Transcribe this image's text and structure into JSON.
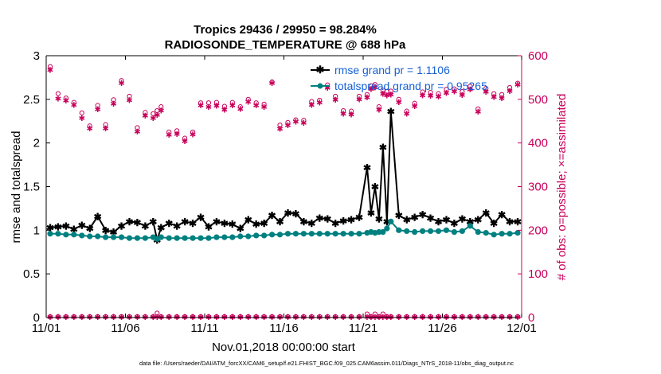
{
  "chart_data": {
    "type": "line",
    "title_line1": "Tropics 29436 / 29950 = 98.284%",
    "title_line2": "RADIOSONDE_TEMPERATURE @ 688 hPa",
    "xlabel": "Nov.01,2018 00:00:00 start",
    "ylabel_left": "rmse and totalspread",
    "ylabel_right": "# of obs: o=possible; ×=assimilated",
    "footer": "data file: /Users/raeder/DAI/ATM_forcXX/CAM6_setup/f.e21.FHIST_BGC.f09_025.CAM6assim.011/Diags_NTrS_2018-11/obs_diag_output.nc",
    "xlim": [
      0,
      30
    ],
    "ylim_left": [
      0,
      3
    ],
    "ylim_right": [
      0,
      600
    ],
    "x_ticks": [
      0,
      5,
      10,
      15,
      20,
      25,
      30
    ],
    "x_tick_labels": [
      "11/01",
      "11/06",
      "11/11",
      "11/16",
      "11/21",
      "11/26",
      "12/01"
    ],
    "y_left_ticks": [
      0,
      0.5,
      1,
      1.5,
      2,
      2.5,
      3
    ],
    "y_left_tick_labels": [
      "0",
      "0.5",
      "1",
      "1.5",
      "2",
      "2.5",
      "3"
    ],
    "y_right_ticks": [
      0,
      100,
      200,
      300,
      400,
      500,
      600
    ],
    "y_right_tick_labels": [
      "0",
      "100",
      "200",
      "300",
      "400",
      "500",
      "600"
    ],
    "legend": [
      "rmse grand pr = 1.1106",
      "totalspread grand pr = 0.95265"
    ],
    "x": [
      0.25,
      0.75,
      1.25,
      1.75,
      2.25,
      2.75,
      3.25,
      3.75,
      4.25,
      4.75,
      5.25,
      5.75,
      6.25,
      6.75,
      7.0,
      7.25,
      7.75,
      8.25,
      8.75,
      9.25,
      9.75,
      10.25,
      10.75,
      11.25,
      11.75,
      12.25,
      12.75,
      13.25,
      13.75,
      14.25,
      14.75,
      15.25,
      15.75,
      16.25,
      16.75,
      17.25,
      17.75,
      18.25,
      18.75,
      19.25,
      19.75,
      20.25,
      20.5,
      20.75,
      21.0,
      21.25,
      21.5,
      21.75,
      22.25,
      22.75,
      23.25,
      23.75,
      24.25,
      24.75,
      25.25,
      25.75,
      26.25,
      26.75,
      27.25,
      27.75,
      28.25,
      28.75,
      29.25,
      29.75
    ],
    "series": [
      {
        "name": "rmse",
        "color": "#000000",
        "marker": "star",
        "values": [
          1.03,
          1.04,
          1.05,
          1.01,
          1.06,
          1.02,
          1.16,
          1.0,
          0.98,
          1.05,
          1.1,
          1.09,
          1.05,
          1.1,
          0.89,
          1.03,
          1.08,
          1.05,
          1.1,
          1.08,
          1.15,
          1.04,
          1.1,
          1.08,
          1.07,
          1.02,
          1.12,
          1.07,
          1.08,
          1.17,
          1.1,
          1.2,
          1.19,
          1.1,
          1.08,
          1.14,
          1.13,
          1.08,
          1.11,
          1.12,
          1.15,
          1.72,
          1.2,
          1.5,
          1.13,
          1.95,
          1.1,
          2.36,
          1.17,
          1.12,
          1.15,
          1.18,
          1.14,
          1.1,
          1.12,
          1.08,
          1.13,
          1.1,
          1.12,
          1.2,
          1.08,
          1.18,
          1.1,
          1.1
        ]
      },
      {
        "name": "totalspread",
        "color": "#008080",
        "marker": "dot",
        "values": [
          0.96,
          0.96,
          0.95,
          0.95,
          0.94,
          0.93,
          0.93,
          0.92,
          0.92,
          0.92,
          0.91,
          0.91,
          0.91,
          0.92,
          0.9,
          0.92,
          0.91,
          0.91,
          0.91,
          0.91,
          0.91,
          0.91,
          0.92,
          0.92,
          0.92,
          0.93,
          0.93,
          0.94,
          0.94,
          0.95,
          0.95,
          0.96,
          0.96,
          0.96,
          0.96,
          0.96,
          0.96,
          0.96,
          0.96,
          0.96,
          0.96,
          0.97,
          0.98,
          0.97,
          0.98,
          0.98,
          1.02,
          1.1,
          1.0,
          0.99,
          0.98,
          0.99,
          0.99,
          0.99,
          1.0,
          0.98,
          0.99,
          1.05,
          0.98,
          0.97,
          0.95,
          0.96,
          0.96,
          0.97
        ]
      }
    ],
    "obs_possible": [
      575,
      513,
      503,
      493,
      469,
      439,
      486,
      442,
      499,
      543,
      507,
      435,
      470,
      467,
      474,
      483,
      425,
      428,
      411,
      425,
      492,
      492,
      493,
      484,
      493,
      483,
      500,
      492,
      489,
      540,
      441,
      447,
      453,
      452,
      495,
      498,
      533,
      507,
      474,
      473,
      507,
      511,
      531,
      534,
      483,
      521,
      518,
      519,
      500,
      473,
      491,
      517,
      516,
      513,
      523,
      524,
      518,
      530,
      478,
      525,
      513,
      511,
      527,
      537
    ],
    "obs_assimilated": [
      568,
      502,
      498,
      488,
      458,
      434,
      478,
      434,
      491,
      538,
      499,
      427,
      463,
      458,
      465,
      475,
      419,
      421,
      405,
      420,
      487,
      483,
      486,
      477,
      487,
      479,
      495,
      487,
      483,
      538,
      433,
      441,
      450,
      447,
      488,
      493,
      527,
      500,
      468,
      466,
      501,
      505,
      524,
      528,
      477,
      513,
      510,
      512,
      494,
      468,
      485,
      510,
      509,
      507,
      515,
      519,
      511,
      523,
      472,
      518,
      506,
      503,
      520,
      534
    ],
    "obs_possible_low": [
      2,
      2,
      2,
      2,
      2,
      2,
      2,
      2,
      2,
      2,
      2,
      2,
      2,
      2,
      10,
      2,
      2,
      2,
      2,
      2,
      2,
      2,
      2,
      2,
      2,
      2,
      2,
      2,
      2,
      2,
      2,
      2,
      2,
      2,
      2,
      2,
      2,
      2,
      2,
      2,
      2,
      8,
      2,
      8,
      2,
      8,
      2,
      2,
      2,
      2,
      2,
      2,
      2,
      2,
      2,
      2,
      2,
      2,
      2,
      2,
      2,
      2,
      2,
      2
    ],
    "obs_assimilated_low": [
      2,
      2,
      2,
      2,
      2,
      2,
      2,
      2,
      2,
      2,
      2,
      2,
      2,
      2,
      2,
      2,
      2,
      2,
      2,
      2,
      2,
      2,
      2,
      2,
      2,
      2,
      2,
      2,
      2,
      2,
      2,
      2,
      2,
      2,
      2,
      2,
      2,
      2,
      2,
      2,
      2,
      2,
      2,
      2,
      2,
      2,
      2,
      2,
      2,
      2,
      2,
      2,
      2,
      2,
      2,
      2,
      2,
      2,
      2,
      2,
      2,
      2,
      2,
      2
    ]
  }
}
